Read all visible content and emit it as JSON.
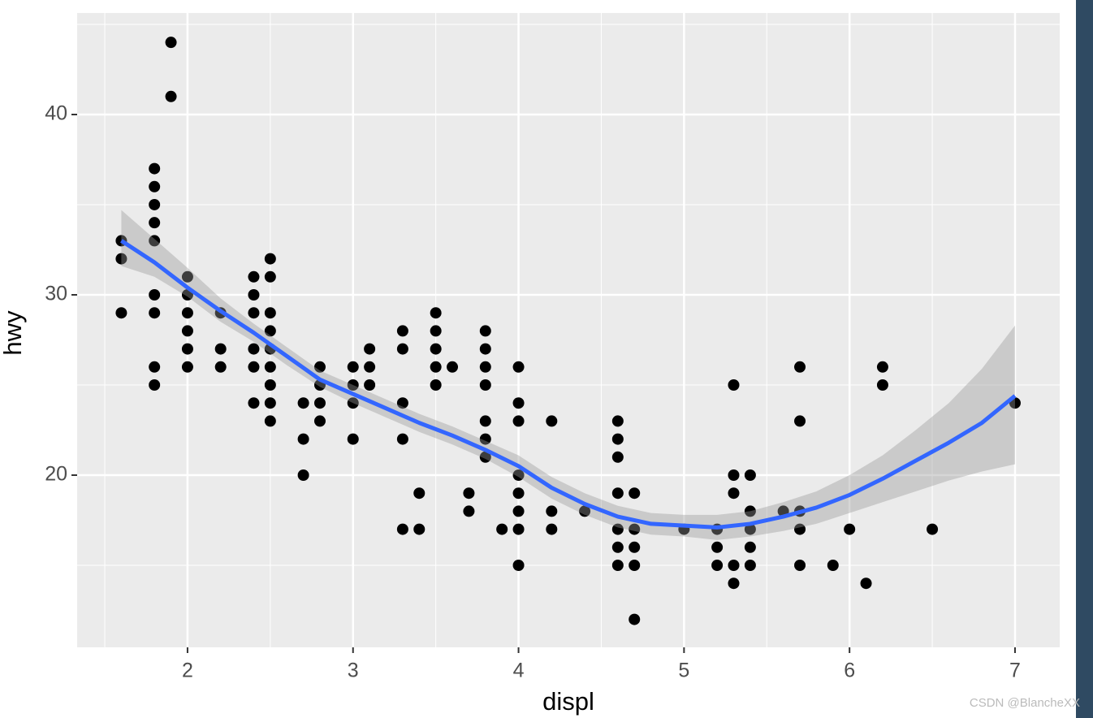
{
  "chart_data": {
    "type": "scatter",
    "x_label": "displ",
    "y_label": "hwy",
    "x": [
      1.6,
      1.6,
      1.6,
      1.8,
      1.8,
      1.8,
      1.8,
      1.8,
      1.8,
      1.8,
      1.8,
      1.8,
      1.9,
      1.9,
      2.0,
      2.0,
      2.0,
      2.0,
      2.0,
      2.0,
      2.2,
      2.2,
      2.2,
      2.4,
      2.4,
      2.4,
      2.4,
      2.4,
      2.4,
      2.5,
      2.5,
      2.5,
      2.5,
      2.5,
      2.5,
      2.5,
      2.5,
      2.5,
      2.7,
      2.7,
      2.7,
      2.8,
      2.8,
      2.8,
      2.8,
      3.0,
      3.0,
      3.0,
      3.0,
      3.1,
      3.1,
      3.1,
      3.3,
      3.3,
      3.3,
      3.3,
      3.3,
      3.4,
      3.4,
      3.5,
      3.5,
      3.5,
      3.5,
      3.5,
      3.6,
      3.7,
      3.7,
      3.8,
      3.8,
      3.8,
      3.8,
      3.8,
      3.8,
      3.8,
      3.9,
      4.0,
      4.0,
      4.0,
      4.0,
      4.0,
      4.0,
      4.0,
      4.0,
      4.2,
      4.2,
      4.2,
      4.4,
      4.6,
      4.6,
      4.6,
      4.6,
      4.6,
      4.6,
      4.6,
      4.7,
      4.7,
      4.7,
      4.7,
      4.7,
      5.0,
      5.2,
      5.2,
      5.2,
      5.3,
      5.3,
      5.3,
      5.3,
      5.3,
      5.4,
      5.4,
      5.4,
      5.4,
      5.4,
      5.6,
      5.7,
      5.7,
      5.7,
      5.7,
      5.7,
      5.9,
      6.0,
      6.1,
      6.2,
      6.2,
      6.5,
      7.0
    ],
    "values": [
      33,
      32,
      29,
      37,
      36,
      35,
      34,
      33,
      30,
      29,
      26,
      25,
      44,
      41,
      31,
      30,
      29,
      28,
      27,
      26,
      29,
      27,
      26,
      31,
      30,
      29,
      27,
      26,
      24,
      32,
      31,
      29,
      28,
      27,
      26,
      25,
      24,
      23,
      24,
      22,
      20,
      26,
      25,
      24,
      23,
      26,
      25,
      24,
      22,
      27,
      26,
      25,
      28,
      27,
      24,
      22,
      17,
      19,
      17,
      29,
      28,
      27,
      26,
      25,
      26,
      19,
      18,
      28,
      27,
      26,
      25,
      23,
      22,
      21,
      17,
      26,
      24,
      23,
      20,
      19,
      18,
      17,
      15,
      23,
      18,
      17,
      18,
      23,
      22,
      21,
      19,
      17,
      16,
      15,
      19,
      17,
      16,
      15,
      12,
      17,
      17,
      16,
      15,
      25,
      20,
      19,
      15,
      14,
      20,
      18,
      17,
      16,
      15,
      18,
      26,
      23,
      18,
      17,
      15,
      15,
      17,
      14,
      26,
      25,
      17,
      24
    ],
    "color": "#000000",
    "smooth": {
      "x": [
        1.6,
        1.8,
        2.0,
        2.2,
        2.4,
        2.6,
        2.8,
        3.0,
        3.2,
        3.4,
        3.6,
        3.8,
        4.0,
        4.2,
        4.4,
        4.6,
        4.8,
        5.0,
        5.2,
        5.4,
        5.6,
        5.8,
        6.0,
        6.2,
        6.4,
        6.6,
        6.8,
        7.0
      ],
      "values": [
        33.0,
        31.8,
        30.4,
        29.1,
        27.9,
        26.6,
        25.3,
        24.5,
        23.7,
        22.9,
        22.2,
        21.4,
        20.5,
        19.3,
        18.4,
        17.7,
        17.3,
        17.2,
        17.1,
        17.3,
        17.7,
        18.2,
        18.9,
        19.8,
        20.8,
        21.8,
        22.9,
        24.4
      ],
      "lower": [
        31.6,
        31.0,
        29.9,
        28.5,
        27.4,
        26.1,
        24.9,
        24.0,
        23.2,
        22.4,
        21.7,
        20.9,
        19.9,
        18.7,
        17.8,
        17.1,
        16.7,
        16.6,
        16.4,
        16.6,
        16.9,
        17.3,
        17.9,
        18.5,
        19.1,
        19.7,
        20.2,
        20.6
      ],
      "upper": [
        34.7,
        33.1,
        31.5,
        29.8,
        28.4,
        27.1,
        25.8,
        25.0,
        24.2,
        23.4,
        22.7,
        21.9,
        21.1,
        19.9,
        19.0,
        18.3,
        17.9,
        17.8,
        17.8,
        18.0,
        18.5,
        19.1,
        20.0,
        21.1,
        22.5,
        24.0,
        25.9,
        28.3
      ],
      "color": "#3366ff",
      "band_color": "#999999"
    },
    "xlim": [
      1.333,
      7.27
    ],
    "ylim": [
      10.45,
      45.63
    ],
    "xticks": [
      2,
      3,
      4,
      5,
      6,
      7
    ],
    "yticks": [
      20,
      30,
      40
    ],
    "xticks_minor": [
      1.5,
      2.5,
      3.5,
      4.5,
      5.5,
      6.5
    ],
    "yticks_minor": [
      15,
      25,
      35,
      45
    ],
    "grid": true
  },
  "watermark": "CSDN @BlancheXX"
}
